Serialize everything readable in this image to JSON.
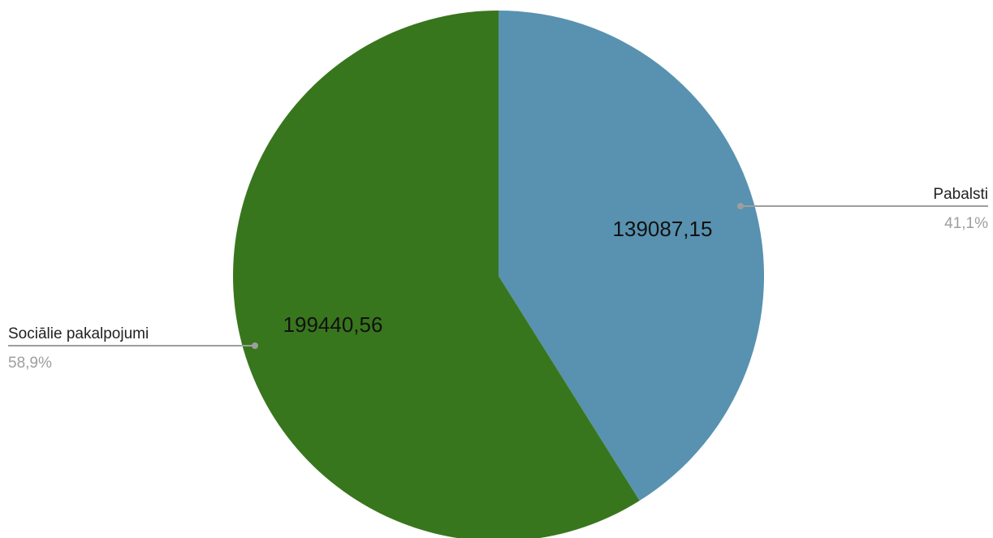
{
  "chart_data": {
    "type": "pie",
    "title": "",
    "slices": [
      {
        "label": "Pabalsti",
        "value": 139087.15,
        "value_text": "139087,15",
        "percent_text": "41,1%",
        "color": "#5892b0"
      },
      {
        "label": "Sociālie pakalpojumi",
        "value": 199440.56,
        "value_text": "199440,56",
        "percent_text": "58,9%",
        "color": "#38761d"
      }
    ],
    "start_angle": "12 o'clock",
    "direction": "clockwise",
    "legend": "none",
    "labels": "leader lines to outside labels"
  }
}
